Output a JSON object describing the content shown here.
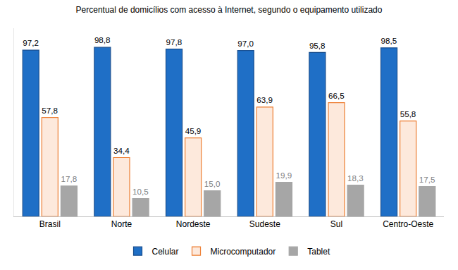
{
  "chart_data": {
    "type": "bar",
    "title": "Percentual de domicílios com acesso à Internet, segundo o equipamento utilizado",
    "categories": [
      "Brasil",
      "Norte",
      "Nordeste",
      "Sudeste",
      "Sul",
      "Centro-Oeste"
    ],
    "series": [
      {
        "name": "Celular",
        "color": "#1f6fc6",
        "values": [
          97.2,
          98.8,
          97.8,
          97.0,
          95.8,
          98.5
        ],
        "value_labels": [
          "97,2",
          "98,8",
          "97,8",
          "97,0",
          "95,8",
          "98,5"
        ]
      },
      {
        "name": "Microcomputador",
        "color": "#fde9dc",
        "values": [
          57.8,
          34.4,
          45.9,
          63.9,
          66.5,
          55.8
        ],
        "value_labels": [
          "57,8",
          "34,4",
          "45,9",
          "63,9",
          "66,5",
          "55,8"
        ]
      },
      {
        "name": "Tablet",
        "color": "#a6a6a6",
        "values": [
          17.8,
          10.5,
          15.0,
          19.9,
          18.3,
          17.5
        ],
        "value_labels": [
          "17,8",
          "10,5",
          "15,0",
          "19,9",
          "18,3",
          "17,5"
        ]
      }
    ],
    "ylim": [
      0,
      110
    ],
    "data_labels": true,
    "tick_labels": "x",
    "grid": false,
    "legend": "bottom"
  }
}
